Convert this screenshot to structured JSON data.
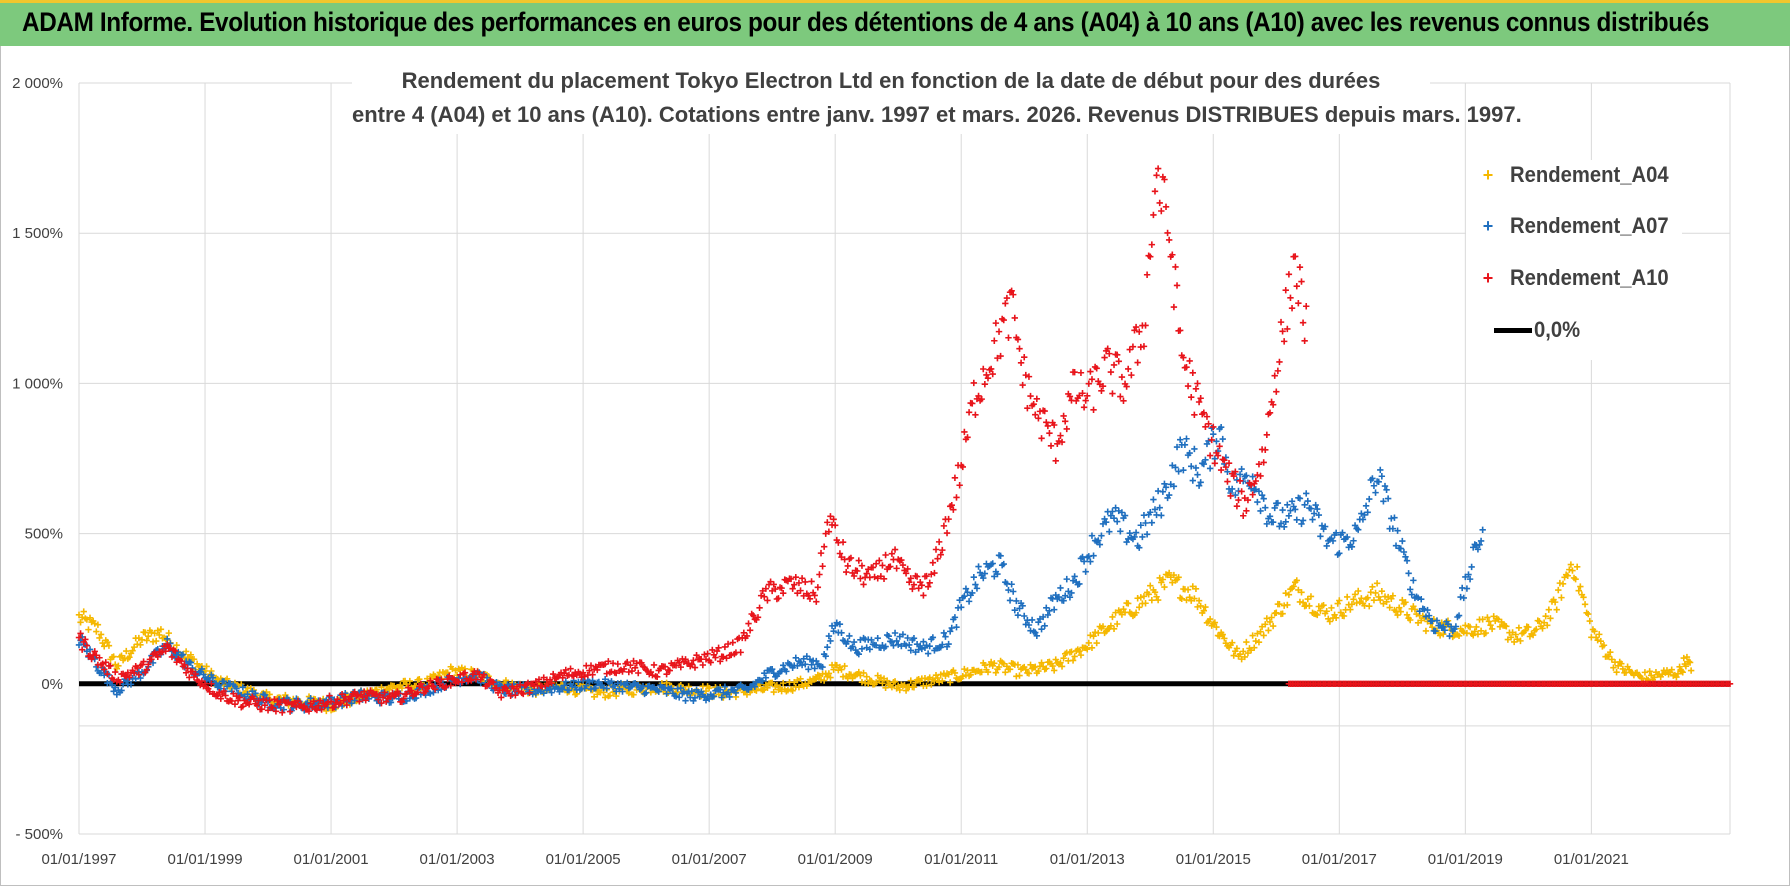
{
  "banner": {
    "title": "ADAM Informe. Evolution historique des performances en euros pour des détentions de 4 ans (A04) à 10 ans (A10) avec les revenus connus distribués"
  },
  "colors": {
    "banner_bg": "#7dc97d",
    "a04": "#f5b800",
    "a07": "#1f6fbf",
    "a10": "#e8141b",
    "zero": "#000000",
    "grid": "#d9d9d9"
  },
  "chart_data": {
    "type": "scatter",
    "title_line1": "Rendement du placement Tokyo Electron Ltd en fonction de la date de début pour des durées",
    "title_line2": "entre 4 (A04) et 10 ans (A10). Cotations entre janv. 1997 et mars. 2026. Revenus DISTRIBUES depuis mars. 1997.",
    "xlabel": "",
    "ylabel": "",
    "xlim": [
      1997.0,
      2023.2
    ],
    "ylim": [
      -500,
      2000
    ],
    "y_ticks": [
      -500,
      0,
      500,
      1000,
      1500,
      2000
    ],
    "y_tick_labels": [
      "- 500%",
      "0%",
      "500%",
      "1 000%",
      "1 500%",
      "2 000%"
    ],
    "x_ticks": [
      1997,
      1999,
      2001,
      2003,
      2005,
      2007,
      2009,
      2011,
      2013,
      2015,
      2017,
      2019,
      2021
    ],
    "x_tick_labels": [
      "01/01/1997",
      "01/01/1999",
      "01/01/2001",
      "01/01/2003",
      "01/01/2005",
      "01/01/2007",
      "01/01/2009",
      "01/01/2011",
      "01/01/2013",
      "01/01/2015",
      "01/01/2017",
      "01/01/2019",
      "01/01/2021"
    ],
    "extra_gridline_y": -140,
    "legend_position": "top-right",
    "series": [
      {
        "name": "Rendement_A04",
        "key": "a04",
        "x": [
          1997.0,
          1997.3,
          1997.6,
          1998.0,
          1998.3,
          1998.6,
          1998.9,
          1999.2,
          1999.6,
          2000.0,
          2000.5,
          2001.0,
          2001.5,
          2002.0,
          2002.5,
          2002.9,
          2003.3,
          2003.7,
          2004.2,
          2004.7,
          2005.2,
          2005.7,
          2006.2,
          2006.7,
          2007.2,
          2007.7,
          2008.2,
          2008.7,
          2009.0,
          2009.5,
          2010.0,
          2010.5,
          2011.0,
          2011.5,
          2012.0,
          2012.5,
          2013.0,
          2013.5,
          2013.9,
          2014.3,
          2014.7,
          2015.0,
          2015.4,
          2015.8,
          2016.3,
          2016.8,
          2017.2,
          2017.6,
          2018.0,
          2018.5,
          2019.0,
          2019.4,
          2019.8,
          2020.1,
          2020.4,
          2020.7,
          2021.0,
          2021.4,
          2021.8,
          2022.1,
          2022.4,
          2022.5,
          2022.6
        ],
        "y": [
          220,
          180,
          60,
          150,
          170,
          110,
          60,
          10,
          -20,
          -50,
          -60,
          -70,
          -40,
          -10,
          0,
          40,
          30,
          0,
          -20,
          -10,
          -30,
          -20,
          -10,
          -20,
          -30,
          -20,
          -10,
          10,
          50,
          20,
          -10,
          10,
          30,
          60,
          40,
          60,
          130,
          220,
          280,
          340,
          300,
          200,
          90,
          180,
          320,
          230,
          270,
          300,
          250,
          190,
          180,
          200,
          160,
          170,
          250,
          410,
          180,
          60,
          20,
          30,
          40,
          80,
          40
        ]
      },
      {
        "name": "Rendement_A07",
        "key": "a07",
        "x": [
          1997.0,
          1997.3,
          1997.6,
          1998.0,
          1998.4,
          1998.8,
          1999.2,
          1999.6,
          2000.0,
          2000.5,
          2001.0,
          2001.5,
          2002.0,
          2002.5,
          2002.9,
          2003.3,
          2003.7,
          2004.2,
          2004.7,
          2005.2,
          2005.7,
          2006.2,
          2006.7,
          2007.2,
          2007.6,
          2008.0,
          2008.4,
          2008.8,
          2009.0,
          2009.3,
          2009.7,
          2010.0,
          2010.4,
          2010.8,
          2011.0,
          2011.3,
          2011.6,
          2011.9,
          2012.2,
          2012.5,
          2012.8,
          2013.1,
          2013.4,
          2013.8,
          2014.2,
          2014.5,
          2014.8,
          2015.1,
          2015.3,
          2015.6,
          2015.9,
          2016.2,
          2016.5,
          2016.8,
          2017.0,
          2017.3,
          2017.6,
          2017.9,
          2018.2,
          2018.5,
          2018.8,
          2019.0,
          2019.3
        ],
        "y": [
          150,
          60,
          -20,
          40,
          130,
          50,
          0,
          -30,
          -60,
          -70,
          -60,
          -40,
          -50,
          -20,
          10,
          30,
          -20,
          -20,
          -10,
          0,
          -10,
          -20,
          -40,
          -30,
          -20,
          40,
          70,
          70,
          200,
          120,
          140,
          150,
          120,
          150,
          260,
          360,
          400,
          250,
          180,
          280,
          340,
          470,
          550,
          480,
          620,
          780,
          700,
          850,
          650,
          700,
          560,
          550,
          600,
          480,
          470,
          500,
          700,
          500,
          300,
          200,
          180,
          320,
          540
        ]
      },
      {
        "name": "Rendement_A10",
        "key": "a10",
        "x": [
          1997.0,
          1997.3,
          1997.6,
          1998.0,
          1998.4,
          1998.8,
          1999.2,
          1999.6,
          2000.0,
          2000.5,
          2001.0,
          2001.5,
          2002.0,
          2002.5,
          2002.9,
          2003.3,
          2003.7,
          2004.2,
          2004.7,
          2005.2,
          2005.7,
          2006.2,
          2006.7,
          2007.2,
          2007.5,
          2007.9,
          2008.3,
          2008.7,
          2008.9,
          2009.2,
          2009.6,
          2009.9,
          2010.2,
          2010.5,
          2010.8,
          2011.0,
          2011.2,
          2011.5,
          2011.8,
          2012.0,
          2012.2,
          2012.5,
          2012.8,
          2013.0,
          2013.3,
          2013.6,
          2013.9,
          2014.1,
          2014.3,
          2014.5,
          2014.8,
          2015.0,
          2015.2,
          2015.5,
          2015.8,
          2016.0,
          2016.3,
          2016.5
        ],
        "y": [
          150,
          80,
          20,
          50,
          120,
          30,
          -30,
          -60,
          -70,
          -80,
          -60,
          -40,
          -50,
          -10,
          10,
          30,
          -30,
          -10,
          30,
          50,
          60,
          40,
          70,
          100,
          130,
          300,
          330,
          300,
          550,
          390,
          350,
          420,
          330,
          330,
          560,
          720,
          950,
          1100,
          1250,
          1020,
          900,
          800,
          980,
          950,
          1050,
          1000,
          1200,
          1700,
          1500,
          1100,
          900,
          800,
          700,
          600,
          760,
          1050,
          1400,
          1150
        ]
      },
      {
        "name": "Rendement_A10_flat",
        "key": "a10",
        "x_start": 2016.2,
        "x_end": 2023.2,
        "y": 0
      }
    ],
    "reference_line": {
      "name": "0,0%",
      "y": 0
    }
  },
  "legend": {
    "items": [
      {
        "label": "Rendement_A04",
        "key": "a04",
        "marker": "+"
      },
      {
        "label": "Rendement_A07",
        "key": "a07",
        "marker": "+"
      },
      {
        "label": "Rendement_A10",
        "key": "a10",
        "marker": "+"
      },
      {
        "label": "0,0%",
        "key": "zero",
        "marker": "line"
      }
    ]
  }
}
